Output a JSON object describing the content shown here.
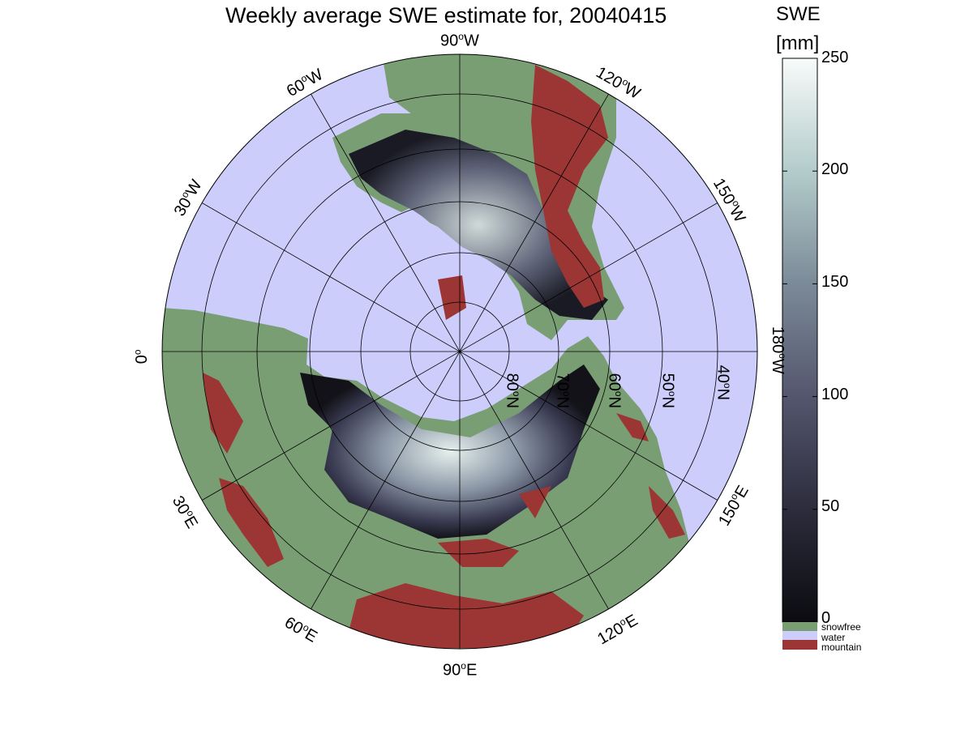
{
  "title": "Weekly average SWE estimate for, 20040415",
  "colorbar": {
    "label": "SWE",
    "unit": "[mm]",
    "ticks": [
      "0",
      "50",
      "100",
      "150",
      "200",
      "250"
    ],
    "range": [
      0,
      250
    ],
    "categories": [
      {
        "name": "snowfree",
        "color": "#7a9e74"
      },
      {
        "name": "water",
        "color": "#cccdfb"
      },
      {
        "name": "mountain",
        "color": "#9c3634"
      }
    ]
  },
  "colors": {
    "water": "#cccdfb",
    "snowfree": "#7a9e74",
    "mountain": "#9c3634",
    "swe_low": "#0b0b10",
    "swe_high": "#f7fbfa"
  },
  "map": {
    "projection": "polar stereographic, north pole",
    "longitude_labels": [
      {
        "deg": "90",
        "hem": "W"
      },
      {
        "deg": "120",
        "hem": "W"
      },
      {
        "deg": "60",
        "hem": "W"
      },
      {
        "deg": "150",
        "hem": "W"
      },
      {
        "deg": "30",
        "hem": "W"
      },
      {
        "deg": "180",
        "hem": "W"
      },
      {
        "deg": "0",
        "hem": ""
      },
      {
        "deg": "150",
        "hem": "E"
      },
      {
        "deg": "30",
        "hem": "E"
      },
      {
        "deg": "120",
        "hem": "E"
      },
      {
        "deg": "60",
        "hem": "E"
      },
      {
        "deg": "90",
        "hem": "E"
      }
    ],
    "latitude_labels": [
      {
        "deg": "80",
        "hem": "N"
      },
      {
        "deg": "70",
        "hem": "N"
      },
      {
        "deg": "60",
        "hem": "N"
      },
      {
        "deg": "50",
        "hem": "N"
      },
      {
        "deg": "40",
        "hem": "N"
      }
    ]
  }
}
